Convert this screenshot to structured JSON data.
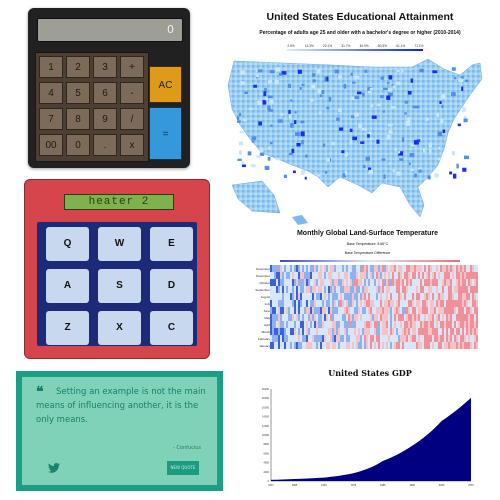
{
  "calculator": {
    "display_value": "0",
    "keys": [
      "1",
      "2",
      "3",
      "+",
      "4",
      "5",
      "6",
      "-",
      "7",
      "8",
      "9",
      "/",
      "00",
      "0",
      ".",
      "x"
    ],
    "ac_label": "AC",
    "equals_label": "=",
    "colors": {
      "body": "#212121",
      "keypad": "#4d3f32",
      "key": "#7b6b58",
      "ac": "#df9b18",
      "equals": "#3498db"
    }
  },
  "drum_machine": {
    "display_text": "heater 2",
    "pads": [
      "Q",
      "W",
      "E",
      "A",
      "S",
      "D",
      "Z",
      "X",
      "C"
    ],
    "colors": {
      "body": "#d6454b",
      "pad_area": "#1d2a7a",
      "pad": "#c8d9ef",
      "display": "#7fb24a"
    }
  },
  "quote_machine": {
    "quote_mark": "❝",
    "text": "Setting an example is not the main means of influencing another, it is the only means.",
    "author": "- Confucius",
    "tweet_icon": "twitter-icon",
    "new_quote_label": "NEW QUOTE",
    "colors": {
      "accent": "#1a9e84",
      "card": "#7fd1b8"
    }
  },
  "education_map": {
    "title": "United States Educational Attainment",
    "subtitle": "Percentage of adults age 25 and older with a bachelor's degree or higher (2010-2014)",
    "legend_ticks": [
      "2.6%",
      "13.3%",
      "22.1%",
      "31.7%",
      "40.9%",
      "50.9%",
      "61.1%",
      "71.1%"
    ],
    "colors": {
      "low": "#c6e4f8",
      "high": "#0b2ae0"
    }
  },
  "heatmap": {
    "title": "Monthly Global Land-Surface Temperature",
    "subtitle1": "Base Temperature: 8.66°C",
    "subtitle2": "Base Temperature Difference",
    "months": [
      "November",
      "December",
      "October",
      "September",
      "August",
      "July",
      "June",
      "May",
      "April",
      "March",
      "February",
      "January"
    ],
    "colors": {
      "cold": "#3b4cc0",
      "neutral": "#d7e6f8",
      "warm": "#f4a3a8"
    }
  },
  "chart_data": {
    "type": "area",
    "title": "United States GDP",
    "x": [
      1947,
      1955,
      1965,
      1975,
      1985,
      1995,
      2005,
      2015
    ],
    "values": [
      243,
      427,
      743,
      1689,
      4346,
      7664,
      13039,
      18100
    ],
    "ylim": [
      0,
      20000
    ],
    "color": "#000080"
  }
}
